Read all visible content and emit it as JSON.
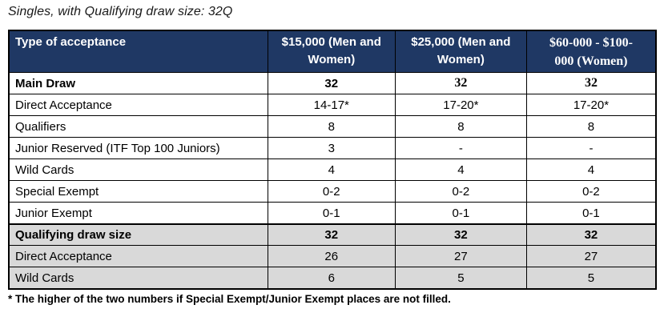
{
  "title": "Singles, with Qualifying draw size: 32Q",
  "colors": {
    "header_bg": "#1f3864",
    "header_text": "#ffffff",
    "shaded_row_bg": "#d9d9d9",
    "border": "#000000"
  },
  "chart_data": {
    "type": "table",
    "title": "Singles, with Qualifying draw size: 32Q",
    "columns": [
      "Type of acceptance",
      "$15,000 (Men and Women)",
      "$25,000 (Men and Women)",
      "$60-000 - $100-000 (Women)"
    ],
    "rows": [
      [
        "Main Draw",
        "32",
        "32",
        "32"
      ],
      [
        "Direct Acceptance",
        "14-17*",
        "17-20*",
        "17-20*"
      ],
      [
        "Qualifiers",
        "8",
        "8",
        "8"
      ],
      [
        "Junior Reserved (ITF Top 100 Juniors)",
        "3",
        "-",
        "-"
      ],
      [
        "Wild Cards",
        "4",
        "4",
        "4"
      ],
      [
        "Special Exempt",
        "0-2",
        "0-2",
        "0-2"
      ],
      [
        "Junior Exempt",
        "0-1",
        "0-1",
        "0-1"
      ],
      [
        "Qualifying draw size",
        "32",
        "32",
        "32"
      ],
      [
        "Direct Acceptance",
        "26",
        "27",
        "27"
      ],
      [
        "Wild Cards",
        "6",
        "5",
        "5"
      ]
    ]
  },
  "table": {
    "columns": [
      {
        "label": "Type of acceptance"
      },
      {
        "label": "$15,000 (Men and\nWomen)"
      },
      {
        "label": "$25,000 (Men and\nWomen)"
      },
      {
        "label": "$60-000 - $100-\n000 (Women)"
      }
    ],
    "rows": [
      {
        "label": "Main Draw",
        "values": [
          "32",
          "32",
          "32"
        ]
      },
      {
        "label": "Direct Acceptance",
        "values": [
          "14-17*",
          "17-20*",
          "17-20*"
        ]
      },
      {
        "label": "Qualifiers",
        "values": [
          "8",
          "8",
          "8"
        ]
      },
      {
        "label": "Junior Reserved (ITF Top 100 Juniors)",
        "values": [
          "3",
          "-",
          "-"
        ]
      },
      {
        "label": "Wild Cards",
        "values": [
          "4",
          "4",
          "4"
        ]
      },
      {
        "label": "Special Exempt",
        "values": [
          "0-2",
          "0-2",
          "0-2"
        ]
      },
      {
        "label": "Junior Exempt",
        "values": [
          "0-1",
          "0-1",
          "0-1"
        ]
      },
      {
        "label": "Qualifying draw size",
        "values": [
          "32",
          "32",
          "32"
        ]
      },
      {
        "label": "Direct Acceptance",
        "values": [
          "26",
          "27",
          "27"
        ]
      },
      {
        "label": "Wild Cards",
        "values": [
          "6",
          "5",
          "5"
        ]
      }
    ]
  },
  "footnote": "* The higher of the two numbers if Special Exempt/Junior Exempt places are not filled."
}
